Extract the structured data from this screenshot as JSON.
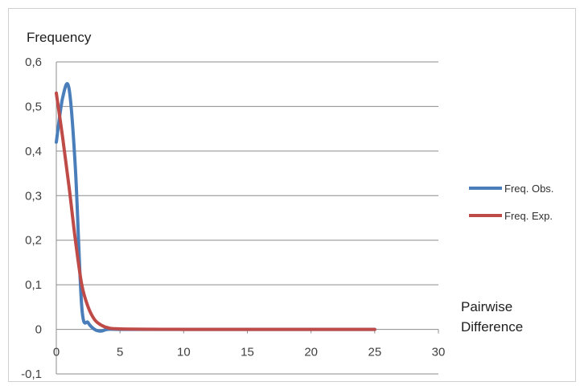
{
  "chart_data": {
    "type": "line",
    "ylabel": "Frequency",
    "xlabel": "Pairwise Difference",
    "xlim": [
      0,
      30
    ],
    "ylim": [
      -0.1,
      0.6
    ],
    "x_ticks": [
      "0",
      "5",
      "10",
      "15",
      "20",
      "25",
      "30"
    ],
    "y_ticks": [
      "-0,1",
      "0",
      "0,1",
      "0,2",
      "0,3",
      "0,4",
      "0,5",
      "0,6"
    ],
    "grid": "horizontal",
    "legend_position": "right",
    "series": [
      {
        "name": "Freq. Obs.",
        "color": "#4a7ebb",
        "x": [
          0,
          0.5,
          1,
          1.5,
          2,
          2.5,
          3,
          3.5,
          4,
          5,
          10,
          15,
          20,
          25
        ],
        "y": [
          0.42,
          0.52,
          0.54,
          0.36,
          0.05,
          0.015,
          0.0,
          -0.004,
          0.0,
          0.0,
          0.0,
          0.0,
          0.0,
          0.0
        ]
      },
      {
        "name": "Freq. Exp.",
        "color": "#be4b48",
        "x": [
          0,
          0.5,
          1,
          1.5,
          2,
          2.5,
          3,
          3.5,
          4,
          5,
          10,
          15,
          20,
          25
        ],
        "y": [
          0.53,
          0.43,
          0.32,
          0.2,
          0.1,
          0.05,
          0.022,
          0.01,
          0.004,
          0.001,
          0.0,
          0.0,
          0.0,
          0.0
        ]
      }
    ]
  }
}
